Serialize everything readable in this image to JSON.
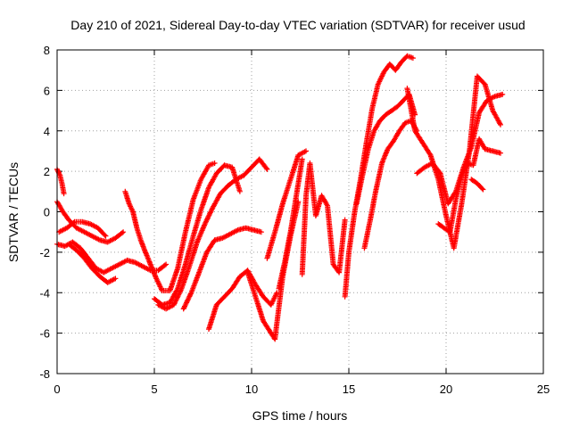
{
  "chart_data": {
    "type": "scatter",
    "title": "Day 210 of 2021, Sidereal Day-to-day VTEC variation (SDTVAR) for receiver usud",
    "xlabel": "GPS time / hours",
    "ylabel": "SDTVAR / TECUs",
    "xlim": [
      0,
      25
    ],
    "ylim": [
      -8,
      8
    ],
    "xticks": [
      "0",
      "5",
      "10",
      "15",
      "20",
      "25"
    ],
    "yticks": [
      "-8",
      "-6",
      "-4",
      "-2",
      "0",
      "2",
      "4",
      "6",
      "8"
    ],
    "grid": true,
    "marker": "plus",
    "color": "#ff0000",
    "series": [
      {
        "x": [
          0.0,
          0.3,
          0.6,
          1.0,
          1.4,
          1.8,
          2.2,
          2.6,
          3.0,
          3.4
        ],
        "y": [
          0.5,
          0.0,
          -0.4,
          -0.8,
          -1.0,
          -1.2,
          -1.4,
          -1.5,
          -1.3,
          -1.0
        ]
      },
      {
        "x": [
          0.0,
          0.4,
          0.8,
          1.2,
          1.6,
          2.0,
          2.4,
          2.8,
          3.2,
          3.6,
          4.0,
          4.4,
          4.8,
          5.2,
          5.6
        ],
        "y": [
          -1.6,
          -1.7,
          -1.5,
          -1.8,
          -2.3,
          -2.8,
          -3.0,
          -2.8,
          -2.6,
          -2.4,
          -2.5,
          -2.7,
          -2.9,
          -2.9,
          -2.6
        ]
      },
      {
        "x": [
          0.1,
          0.5,
          0.9,
          1.3,
          1.7,
          2.1,
          2.5
        ],
        "y": [
          -1.0,
          -0.8,
          -0.5,
          -0.5,
          -0.6,
          -0.8,
          -1.2
        ]
      },
      {
        "x": [
          0.6,
          1.0,
          1.4,
          1.8,
          2.2,
          2.6,
          3.0
        ],
        "y": [
          -1.6,
          -1.9,
          -2.3,
          -2.8,
          -3.2,
          -3.5,
          -3.3
        ]
      },
      {
        "x": [
          0.0,
          0.15,
          0.25,
          0.35
        ],
        "y": [
          2.1,
          1.8,
          1.4,
          0.9
        ]
      },
      {
        "x": [
          3.5,
          3.7,
          3.9,
          4.1,
          4.3,
          4.5,
          4.8,
          5.1,
          5.4,
          5.8,
          6.2,
          6.6,
          7.0,
          7.4,
          7.8,
          8.1
        ],
        "y": [
          1.0,
          0.4,
          0.0,
          -0.8,
          -1.4,
          -1.9,
          -2.6,
          -3.3,
          -3.9,
          -3.9,
          -2.8,
          -1.0,
          0.6,
          1.6,
          2.3,
          2.4
        ]
      },
      {
        "x": [
          5.0,
          5.4,
          5.8,
          6.2,
          6.6,
          7.0,
          7.4,
          7.8,
          8.2,
          8.6,
          9.0,
          9.4
        ],
        "y": [
          -4.3,
          -4.6,
          -4.5,
          -3.8,
          -2.6,
          -1.2,
          0.1,
          1.2,
          1.9,
          2.3,
          2.2,
          1.0
        ]
      },
      {
        "x": [
          5.2,
          5.6,
          6.0,
          6.4,
          6.8,
          7.2,
          7.6,
          8.0,
          8.4,
          8.8,
          9.2,
          9.6,
          10.0,
          10.4,
          10.8
        ],
        "y": [
          -4.6,
          -4.8,
          -4.6,
          -3.8,
          -2.7,
          -1.5,
          -0.6,
          0.2,
          0.9,
          1.3,
          1.6,
          1.8,
          2.2,
          2.6,
          2.1
        ]
      },
      {
        "x": [
          6.5,
          6.9,
          7.3,
          7.7,
          8.1,
          8.5,
          8.9,
          9.3,
          9.7,
          10.1,
          10.5
        ],
        "y": [
          -4.8,
          -4.0,
          -3.0,
          -2.0,
          -1.4,
          -1.3,
          -1.1,
          -0.9,
          -0.8,
          -0.9,
          -1.0
        ]
      },
      {
        "x": [
          7.8,
          8.2,
          8.6,
          9.0,
          9.4,
          9.8,
          10.2,
          10.6,
          11.0,
          11.3
        ],
        "y": [
          -5.8,
          -4.6,
          -4.2,
          -3.8,
          -3.2,
          -2.9,
          -3.6,
          -4.2,
          -4.6,
          -4.0
        ]
      },
      {
        "x": [
          9.8,
          10.2,
          10.6,
          11.0,
          11.2,
          11.6,
          12.0,
          12.4
        ],
        "y": [
          -3.0,
          -4.2,
          -5.4,
          -6.0,
          -6.3,
          -3.2,
          -1.2,
          0.5
        ]
      },
      {
        "x": [
          10.8,
          11.2,
          11.6,
          12.0,
          12.4,
          12.8
        ],
        "y": [
          -2.3,
          -1.0,
          0.4,
          1.6,
          2.8,
          3.0
        ]
      },
      {
        "x": [
          11.4,
          11.7,
          12.0,
          12.3,
          12.6
        ],
        "y": [
          -3.8,
          -2.5,
          -1.0,
          0.8,
          2.6
        ]
      },
      {
        "x": [
          12.6,
          12.8,
          13.0,
          13.3,
          13.6,
          13.9,
          14.2,
          14.5,
          14.8
        ],
        "y": [
          -3.1,
          0.8,
          2.4,
          -0.2,
          0.8,
          0.3,
          -2.6,
          -3.0,
          -0.4
        ]
      },
      {
        "x": [
          14.8,
          15.0,
          15.3,
          15.6,
          15.9,
          16.2,
          16.5,
          16.8,
          17.1,
          17.4,
          17.7,
          18.0,
          18.3
        ],
        "y": [
          -4.2,
          -2.0,
          0.0,
          1.6,
          3.4,
          5.1,
          6.3,
          6.9,
          7.3,
          7.0,
          7.4,
          7.7,
          7.6
        ]
      },
      {
        "x": [
          15.4,
          15.7,
          16.0,
          16.3,
          16.6,
          16.9,
          17.2,
          17.5,
          17.8,
          18.1,
          18.4
        ],
        "y": [
          0.4,
          1.8,
          3.1,
          4.0,
          4.5,
          4.8,
          5.0,
          5.2,
          5.5,
          5.8,
          4.8
        ]
      },
      {
        "x": [
          15.8,
          16.1,
          16.4,
          16.7,
          17.0,
          17.3,
          17.6,
          17.9,
          18.2,
          18.5
        ],
        "y": [
          -1.8,
          -0.4,
          1.1,
          2.4,
          3.1,
          3.5,
          4.0,
          4.4,
          4.5,
          4.0
        ]
      },
      {
        "x": [
          18.5,
          18.9,
          19.3,
          19.7,
          20.1,
          20.5,
          20.9,
          21.3,
          21.7,
          22.1,
          22.5,
          22.9
        ],
        "y": [
          1.9,
          2.2,
          2.4,
          1.9,
          0.4,
          1.0,
          2.2,
          3.2,
          4.9,
          5.5,
          5.7,
          5.8
        ]
      },
      {
        "x": [
          18.0,
          18.4,
          18.8,
          19.2,
          19.6,
          20.0,
          20.4,
          20.8,
          21.2,
          21.6,
          22.0,
          22.4,
          22.8
        ],
        "y": [
          6.1,
          4.0,
          3.4,
          2.8,
          1.6,
          -0.2,
          -1.8,
          0.4,
          3.0,
          6.7,
          6.3,
          5.0,
          4.3
        ]
      },
      {
        "x": [
          19.6,
          19.9,
          20.2,
          20.5,
          20.8,
          21.1,
          21.4,
          21.7,
          22.0,
          22.4,
          22.8
        ],
        "y": [
          -0.6,
          -0.8,
          -1.0,
          0.6,
          1.8,
          2.4,
          2.3,
          3.6,
          3.1,
          3.0,
          2.9
        ]
      },
      {
        "x": [
          21.3,
          21.6,
          21.9
        ],
        "y": [
          1.6,
          1.4,
          1.1
        ]
      }
    ]
  }
}
